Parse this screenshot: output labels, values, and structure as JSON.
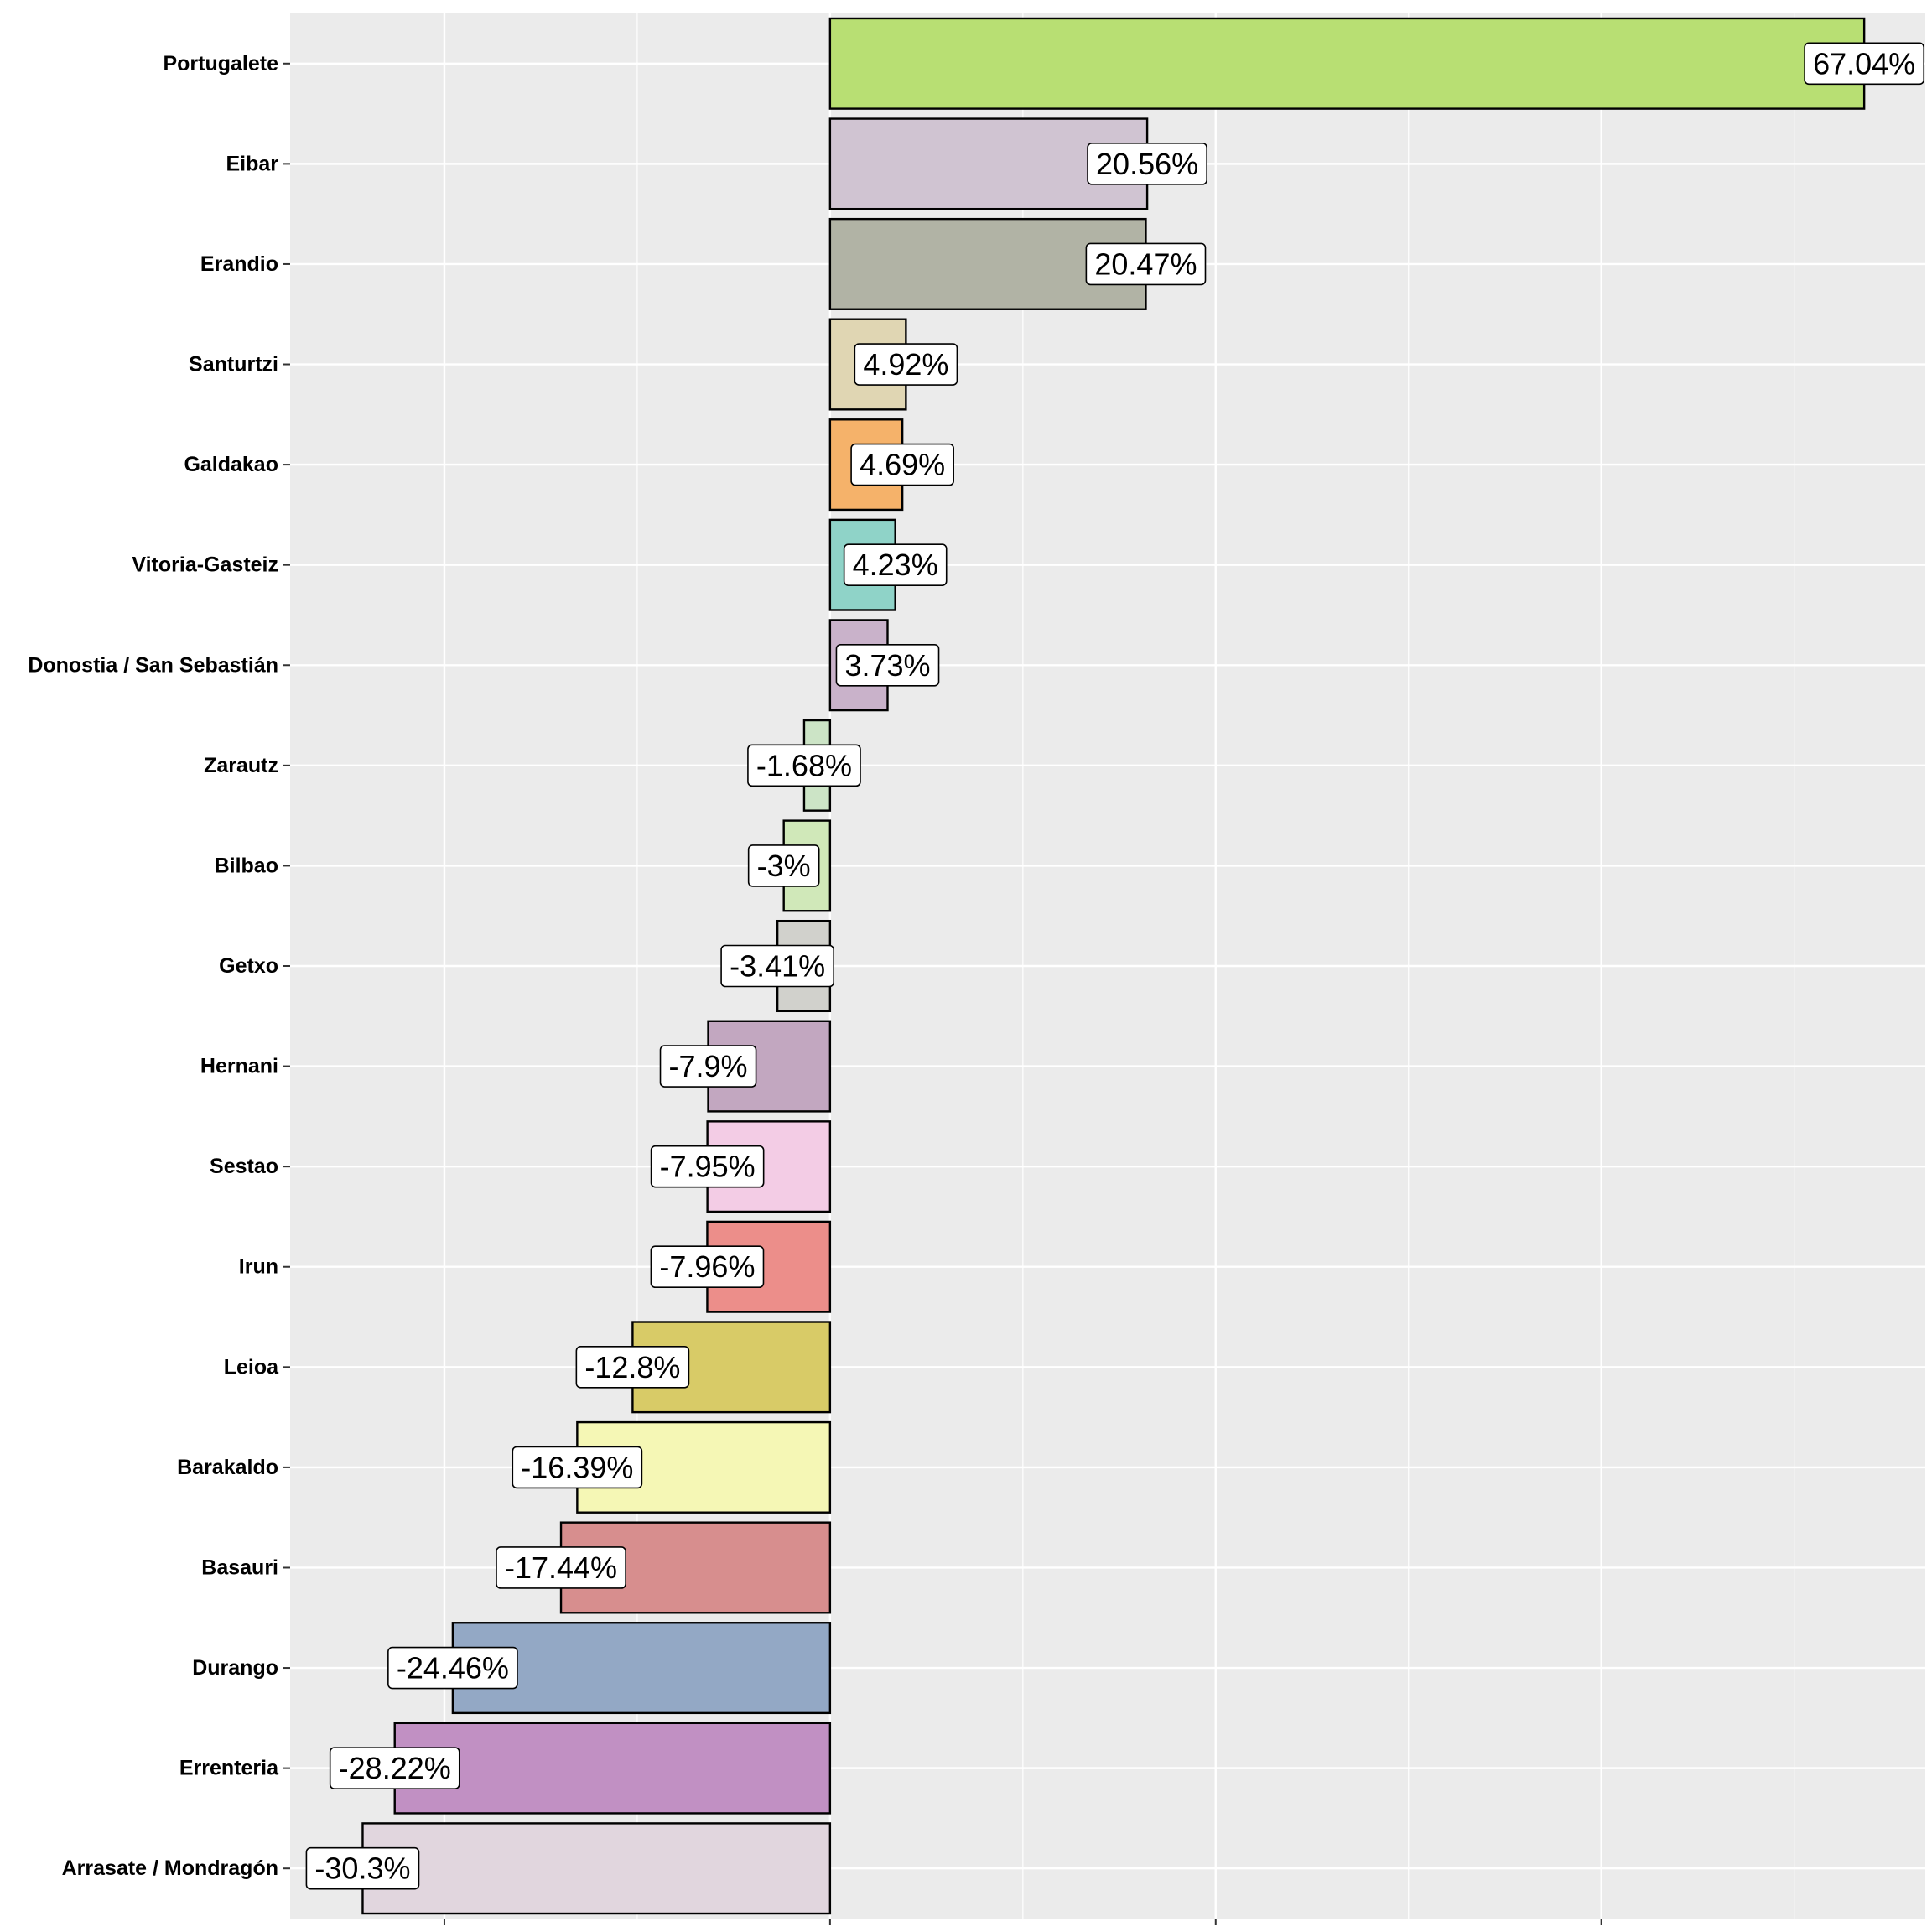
{
  "chart_data": {
    "type": "bar",
    "orientation": "horizontal",
    "title": "",
    "xlabel": "",
    "ylabel": "",
    "xlim": [
      -35,
      71
    ],
    "x_gridlines": [
      -25,
      0,
      25,
      50
    ],
    "x_tick_labels_shown": false,
    "grid": true,
    "legend": "none",
    "categories": [
      "Portugalete",
      "Eibar",
      "Erandio",
      "Santurtzi",
      "Galdakao",
      "Vitoria-Gasteiz",
      "Donostia / San Sebastián",
      "Zarautz",
      "Bilbao",
      "Getxo",
      "Hernani",
      "Sestao",
      "Irun",
      "Leioa",
      "Barakaldo",
      "Basauri",
      "Durango",
      "Errenteria",
      "Arrasate / Mondragón"
    ],
    "values": [
      67.04,
      20.56,
      20.47,
      4.92,
      4.69,
      4.23,
      3.73,
      -1.68,
      -3,
      -3.41,
      -7.9,
      -7.95,
      -7.96,
      -12.8,
      -16.39,
      -17.44,
      -24.46,
      -28.22,
      -30.3
    ],
    "labels": [
      "67.04%",
      "20.56%",
      "20.47%",
      "4.92%",
      "4.69%",
      "4.23%",
      "3.73%",
      "-1.68%",
      "-3%",
      "-3.41%",
      "-7.9%",
      "-7.95%",
      "-7.96%",
      "-12.8%",
      "-16.39%",
      "-17.44%",
      "-24.46%",
      "-28.22%",
      "-30.3%"
    ],
    "colors": [
      "#B8DF73",
      "#D0C4D2",
      "#B1B3A5",
      "#E0D6B3",
      "#F5B26A",
      "#8FD3C8",
      "#C9B2CA",
      "#CCE4C6",
      "#D0E8B9",
      "#D1D1CC",
      "#C2A7C0",
      "#F3CCE5",
      "#EC8E8A",
      "#D8CB67",
      "#F5F7B5",
      "#D78E8E",
      "#93A8C5",
      "#C190C3",
      "#E1D6DE"
    ],
    "panel_background": "#EBEBEB",
    "gridline_color": "#FFFFFF"
  }
}
